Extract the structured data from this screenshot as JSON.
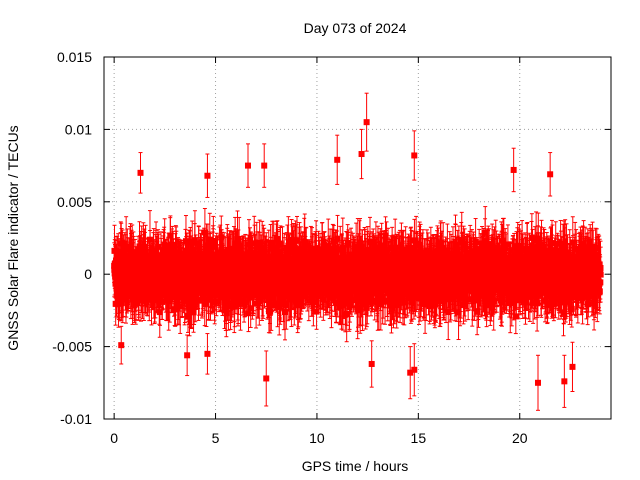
{
  "chart_data": {
    "type": "scatter",
    "title": "Day 073 of 2024",
    "xlabel": "GPS time / hours",
    "ylabel": "GNSS Solar Flare indicator / TECUs",
    "xlim": [
      -0.5,
      24.5
    ],
    "ylim": [
      -0.01,
      0.015
    ],
    "x_ticks": [
      "0",
      "5",
      "10",
      "15",
      "20"
    ],
    "x_tick_values": [
      0,
      5,
      10,
      15,
      20
    ],
    "y_ticks": [
      "-0.01",
      "-0.005",
      "0",
      "0.005",
      "0.01",
      "0.015"
    ],
    "y_tick_values": [
      -0.01,
      -0.005,
      0,
      0.005,
      0.01,
      0.015
    ],
    "grid": true,
    "legend": "none",
    "marker": "square",
    "error_bars": true,
    "color": "#ff0000",
    "point_count": 2880,
    "sampling_interval_hours": 0.008333,
    "x_start": 0,
    "y_spread_sigma": 0.0018,
    "error_bar_typical": 0.0016,
    "seed": 73,
    "outliers": [
      {
        "x": 12.45,
        "y": 0.0105,
        "err": 0.002
      },
      {
        "x": 12.2,
        "y": 0.0083,
        "err": 0.0017
      },
      {
        "x": 14.8,
        "y": 0.0082,
        "err": 0.0017
      },
      {
        "x": 11.0,
        "y": 0.0079,
        "err": 0.0017
      },
      {
        "x": 1.3,
        "y": 0.007,
        "err": 0.0014
      },
      {
        "x": 7.4,
        "y": 0.0075,
        "err": 0.0015
      },
      {
        "x": 6.6,
        "y": 0.0075,
        "err": 0.0015
      },
      {
        "x": 19.7,
        "y": 0.0072,
        "err": 0.0015
      },
      {
        "x": 21.5,
        "y": 0.0069,
        "err": 0.0015
      },
      {
        "x": 4.6,
        "y": 0.0068,
        "err": 0.0015
      },
      {
        "x": 7.5,
        "y": -0.0072,
        "err": 0.0019
      },
      {
        "x": 14.6,
        "y": -0.0068,
        "err": 0.0018
      },
      {
        "x": 14.8,
        "y": -0.0066,
        "err": 0.0018
      },
      {
        "x": 20.9,
        "y": -0.0075,
        "err": 0.0019
      },
      {
        "x": 22.2,
        "y": -0.0074,
        "err": 0.0018
      },
      {
        "x": 22.6,
        "y": -0.0064,
        "err": 0.0017
      },
      {
        "x": 3.6,
        "y": -0.0056,
        "err": 0.0014
      },
      {
        "x": 4.6,
        "y": -0.0055,
        "err": 0.0014
      },
      {
        "x": 0.35,
        "y": -0.0049,
        "err": 0.0013
      },
      {
        "x": 12.7,
        "y": -0.0062,
        "err": 0.0016
      }
    ]
  }
}
